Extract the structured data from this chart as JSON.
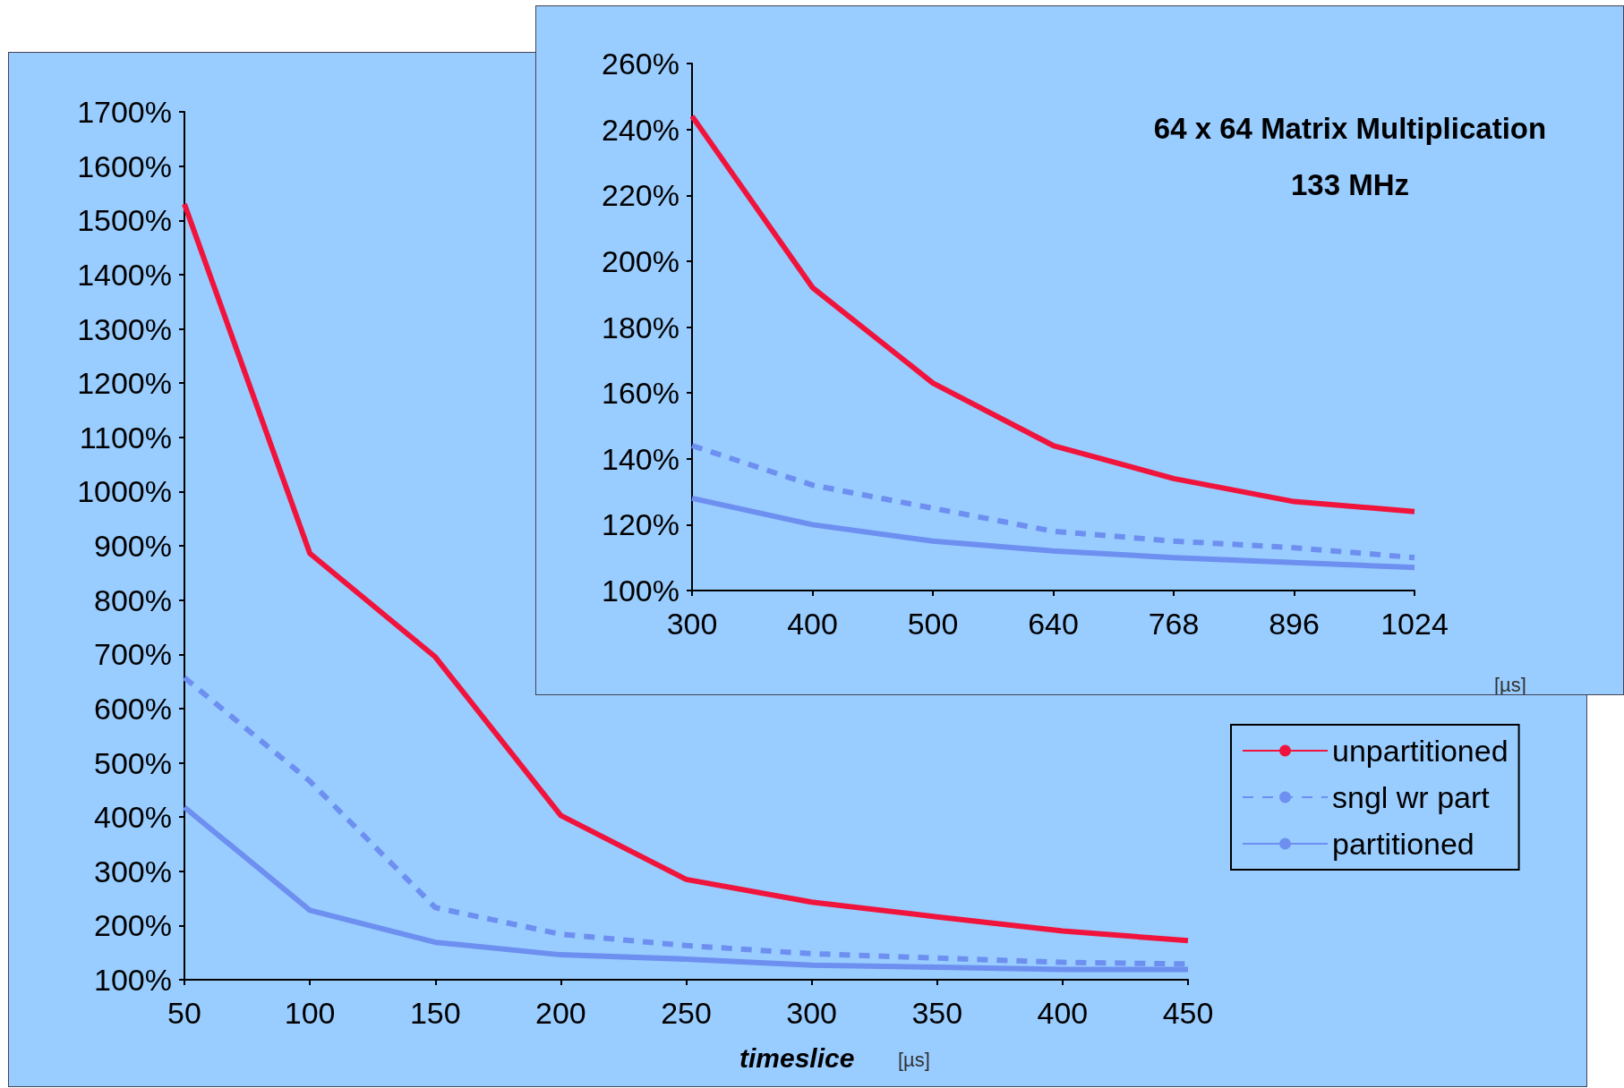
{
  "chart_data": [
    {
      "type": "line",
      "xlabel": "timeslice",
      "annotations": [
        "[µs]"
      ],
      "x": [
        50,
        100,
        150,
        200,
        250,
        300,
        350,
        400,
        450
      ],
      "xlim": [
        50,
        450
      ],
      "xticks": [
        50,
        100,
        150,
        200,
        250,
        300,
        350,
        400,
        450
      ],
      "ylim": [
        100,
        1700
      ],
      "yticks": [
        {
          "value": 100,
          "label": "100%"
        },
        {
          "value": 200,
          "label": "200%"
        },
        {
          "value": 300,
          "label": "300%"
        },
        {
          "value": 400,
          "label": "400%"
        },
        {
          "value": 500,
          "label": "500%"
        },
        {
          "value": 600,
          "label": "600%"
        },
        {
          "value": 700,
          "label": "700%"
        },
        {
          "value": 800,
          "label": "800%"
        },
        {
          "value": 900,
          "label": "900%"
        },
        {
          "value": 1000,
          "label": "1000%"
        },
        {
          "value": 1100,
          "label": "1100%"
        },
        {
          "value": 1200,
          "label": "1200%"
        },
        {
          "value": 1300,
          "label": "1300%"
        },
        {
          "value": 1400,
          "label": "1400%"
        },
        {
          "value": 1500,
          "label": "1500%"
        },
        {
          "value": 1600,
          "label": "1600%"
        },
        {
          "value": 1700,
          "label": "1700%"
        }
      ],
      "grid": false,
      "legend": "right",
      "marker": "none",
      "series": [
        {
          "name": "unpartitioned",
          "color": "#f0143c",
          "line_style": "solid",
          "values": [
            1530,
            886,
            695,
            403,
            285,
            243,
            216,
            190,
            172
          ]
        },
        {
          "name": "sngl wr part",
          "color": "#6d8ff0",
          "line_style": "dashed",
          "values": [
            657,
            466,
            233,
            184,
            163,
            148,
            140,
            132,
            129
          ]
        },
        {
          "name": "partitioned",
          "color": "#6d8ff0",
          "line_style": "solid",
          "values": [
            418,
            228,
            169,
            146,
            138,
            127,
            123,
            119,
            119
          ]
        }
      ]
    },
    {
      "type": "line",
      "title": "64 x 64 Matrix Multiplication",
      "subtitle": "133 MHz",
      "annotations": [
        "[µs]"
      ],
      "categories": [
        "300",
        "400",
        "500",
        "640",
        "768",
        "896",
        "1024"
      ],
      "ylim": [
        100,
        260
      ],
      "yticks": [
        {
          "value": 100,
          "label": "100%"
        },
        {
          "value": 120,
          "label": "120%"
        },
        {
          "value": 140,
          "label": "140%"
        },
        {
          "value": 160,
          "label": "160%"
        },
        {
          "value": 180,
          "label": "180%"
        },
        {
          "value": 200,
          "label": "200%"
        },
        {
          "value": 220,
          "label": "220%"
        },
        {
          "value": 240,
          "label": "240%"
        },
        {
          "value": 260,
          "label": "260%"
        }
      ],
      "grid": false,
      "legend": false,
      "marker": "none",
      "series": [
        {
          "color": "#f0143c",
          "line_style": "solid",
          "values": [
            244,
            192,
            163,
            144,
            134,
            127,
            124
          ]
        },
        {
          "color": "#6d8ff0",
          "line_style": "dashed",
          "values": [
            144,
            132,
            125,
            118,
            115,
            113,
            110
          ]
        },
        {
          "color": "#6d8ff0",
          "line_style": "solid",
          "values": [
            128,
            120,
            115,
            112,
            110,
            108.5,
            107
          ]
        }
      ]
    }
  ]
}
